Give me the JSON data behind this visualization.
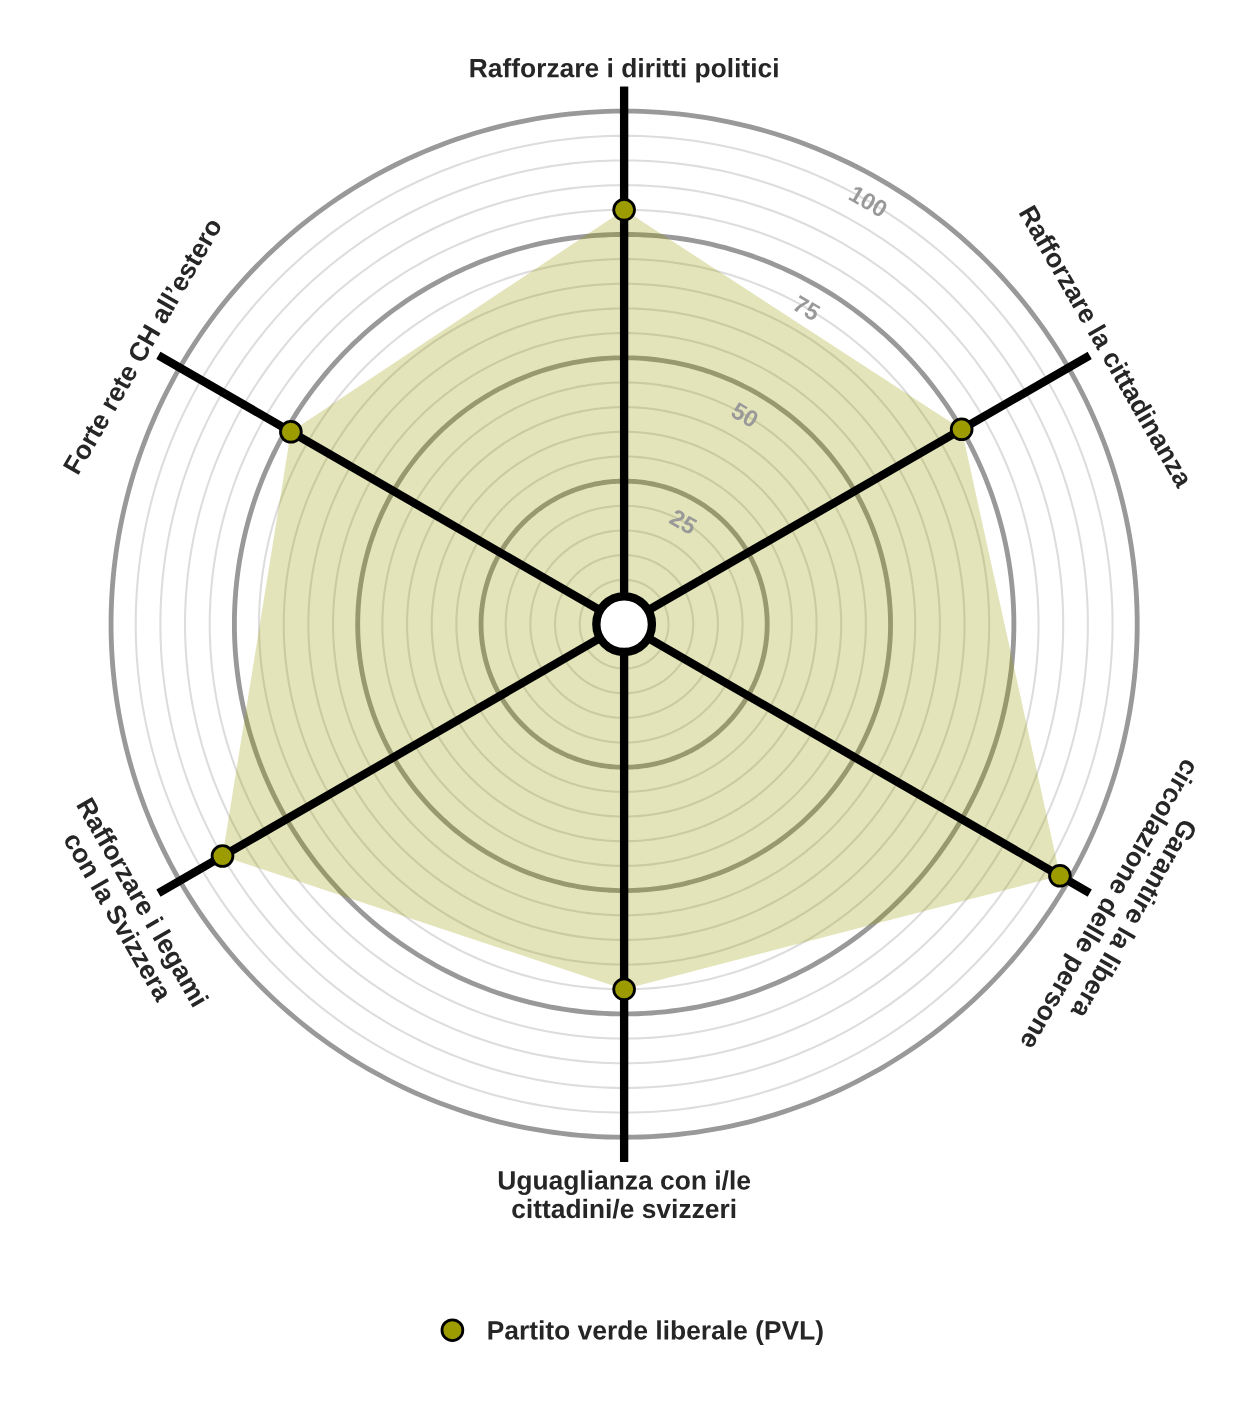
{
  "chart_data": {
    "type": "radar",
    "categories": [
      "Rafforzare i diritti politici",
      "Rafforzare la cittadinanza",
      "Garantire la libera\ncircolazione delle persone",
      "Uguaglianza con i/le\ncittadini/e svizzeri",
      "Rafforzare i legami\ncon la Svizzera",
      "Forte rete CH all’estero"
    ],
    "series": [
      {
        "name": "Partito verde liberale (PVL)",
        "color": "#9c9c00",
        "values": [
          80,
          75,
          98,
          70,
          90,
          74
        ]
      }
    ],
    "ylim": [
      -4,
      105
    ],
    "yticks": [
      25,
      50,
      75,
      100
    ],
    "grid": true,
    "legend": "bottom",
    "marker": "circle"
  }
}
